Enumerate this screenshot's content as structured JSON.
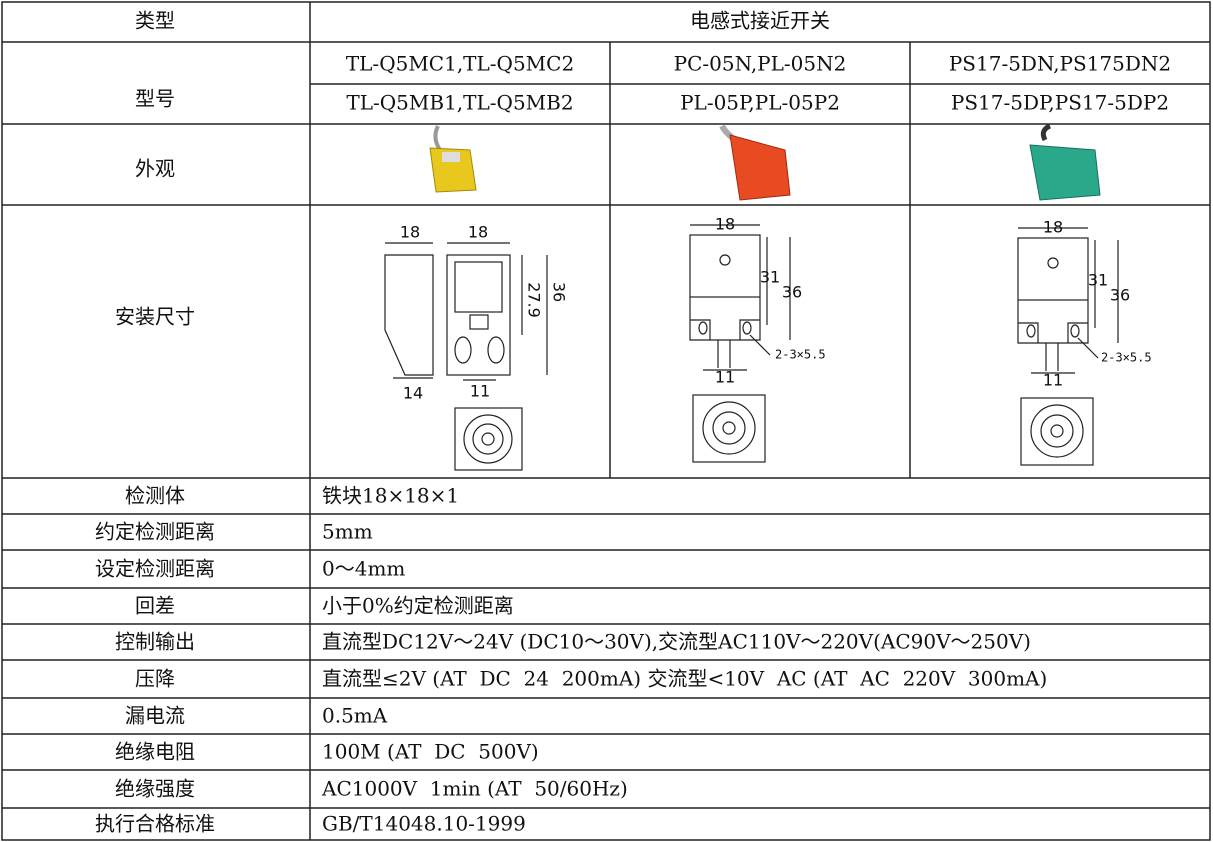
{
  "header": {
    "type_label": "类型",
    "title": "电感式接近开关"
  },
  "models": {
    "label": "型号",
    "columns": [
      [
        "TL-Q5MC1,TL-Q5MC2",
        "TL-Q5MB1,TL-Q5MB2"
      ],
      [
        "PC-05N,PL-05N2",
        "PL-05P,PL-05P2"
      ],
      [
        "PS17-5DN,PS175DN2",
        "PS17-5DP,PS17-5DP2"
      ]
    ]
  },
  "appearance": {
    "label": "外观"
  },
  "dimensions": {
    "label": "安装尺寸",
    "drawings": [
      {
        "labels": [
          "18",
          "18",
          "27.9",
          "36",
          "14",
          "11"
        ]
      },
      {
        "labels": [
          "18",
          "31",
          "36",
          "2-3×5.5",
          "11"
        ]
      },
      {
        "labels": [
          "18",
          "31",
          "36",
          "2-3×5.5",
          "11"
        ]
      }
    ]
  },
  "specs": [
    {
      "label": "检测体",
      "value": "铁块18×18×1"
    },
    {
      "label": "约定检测距离",
      "value": "5mm"
    },
    {
      "label": "设定检测距离",
      "value": "0～4mm"
    },
    {
      "label": "回差",
      "value": "小于0%约定检测距离"
    },
    {
      "label": "控制输出",
      "value": "直流型DC12V～24V (DC10～30V),交流型AC110V～220V(AC90V～250V)"
    },
    {
      "label": "压降",
      "value": "直流型≤2V (AT  DC  24  200mA) 交流型<10V  AC (AT  AC  220V  300mA)"
    },
    {
      "label": "漏电流",
      "value": "0.5mA"
    },
    {
      "label": "绝缘电阻",
      "value": "100M (AT  DC  500V)"
    },
    {
      "label": "绝缘强度",
      "value": "AC1000V  1min (AT  50/60Hz)"
    },
    {
      "label": "执行合格标准",
      "value": "GB/T14048.10-1999"
    }
  ]
}
